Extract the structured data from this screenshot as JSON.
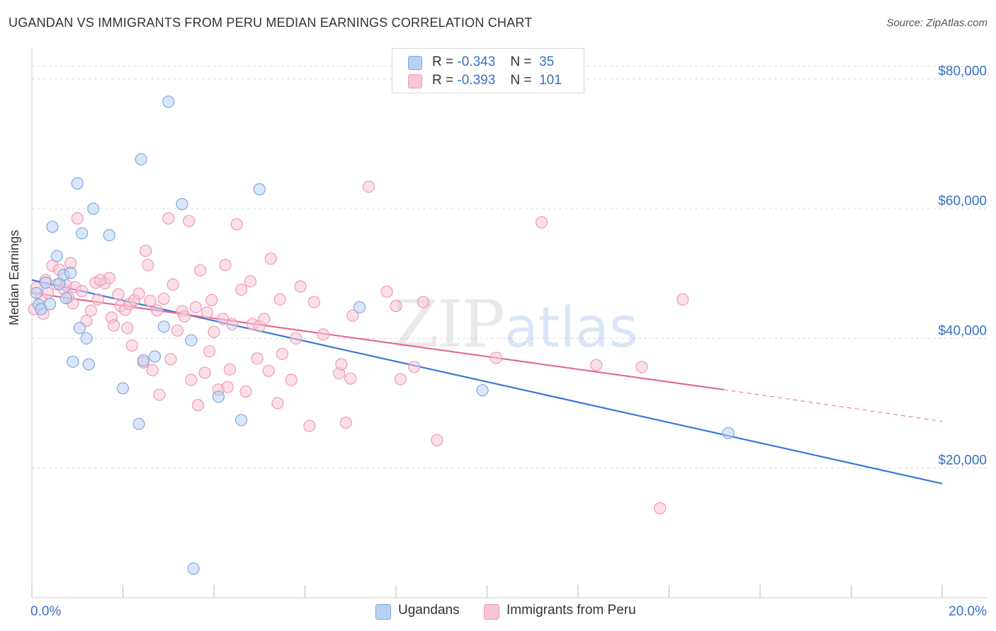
{
  "title": "UGANDAN VS IMMIGRANTS FROM PERU MEDIAN EARNINGS CORRELATION CHART",
  "source": "Source: ZipAtlas.com",
  "watermark": {
    "zip": "ZIP",
    "atlas": "atlas"
  },
  "legend": {
    "ugandans": {
      "r_label": "R =",
      "r_value": "-0.343",
      "n_label": "N =",
      "n_value": "35"
    },
    "peru": {
      "r_label": "R =",
      "r_value": "-0.393",
      "n_label": "N =",
      "n_value": "101"
    }
  },
  "bottom_legend": {
    "ugandans": "Ugandans",
    "peru": "Immigrants from Peru"
  },
  "colors": {
    "blue_fill": "#b8d1f3",
    "blue_stroke": "#7fa8e0",
    "blue_line": "#3a78d6",
    "pink_fill": "#f7c6d6",
    "pink_stroke": "#ee9ab6",
    "pink_line": "#e36b93",
    "axis_text": "#3a6fc4",
    "grid": "#dcdcdc"
  },
  "chart_data": {
    "type": "scatter",
    "ylabel": "Median Earnings",
    "xlim": [
      0,
      20
    ],
    "ylim": [
      0,
      84000
    ],
    "x_tick_labels": [
      "0.0%",
      "20.0%"
    ],
    "y_ticks": [
      {
        "value": 20000,
        "label": "$20,000"
      },
      {
        "value": 40000,
        "label": "$40,000"
      },
      {
        "value": 60000,
        "label": "$60,000"
      },
      {
        "value": 80000,
        "label": "$80,000"
      }
    ],
    "grid": true,
    "series": [
      {
        "name": "Ugandans",
        "points": [
          [
            0.1,
            47000
          ],
          [
            0.15,
            45200
          ],
          [
            0.3,
            48600
          ],
          [
            0.45,
            57200
          ],
          [
            0.55,
            52700
          ],
          [
            0.7,
            49800
          ],
          [
            0.75,
            46200
          ],
          [
            0.85,
            50100
          ],
          [
            0.9,
            36400
          ],
          [
            1.0,
            63900
          ],
          [
            1.05,
            41600
          ],
          [
            1.1,
            56200
          ],
          [
            1.2,
            40000
          ],
          [
            1.25,
            36000
          ],
          [
            1.35,
            60000
          ],
          [
            1.7,
            55900
          ],
          [
            2.0,
            32300
          ],
          [
            2.35,
            26800
          ],
          [
            2.4,
            67600
          ],
          [
            2.45,
            36600
          ],
          [
            2.7,
            37200
          ],
          [
            2.9,
            41800
          ],
          [
            3.0,
            76500
          ],
          [
            3.3,
            60700
          ],
          [
            3.5,
            39700
          ],
          [
            3.55,
            4500
          ],
          [
            4.1,
            31000
          ],
          [
            4.6,
            27400
          ],
          [
            5.0,
            63000
          ],
          [
            7.2,
            44800
          ],
          [
            9.9,
            32000
          ],
          [
            15.3,
            25400
          ],
          [
            0.4,
            45300
          ],
          [
            0.6,
            48400
          ],
          [
            0.2,
            44500
          ]
        ]
      },
      {
        "name": "Immigrants from Peru",
        "points": [
          [
            0.05,
            44500
          ],
          [
            0.1,
            47800
          ],
          [
            0.2,
            46200
          ],
          [
            0.3,
            49000
          ],
          [
            0.35,
            47000
          ],
          [
            0.45,
            51200
          ],
          [
            0.55,
            48300
          ],
          [
            0.6,
            50600
          ],
          [
            0.7,
            47600
          ],
          [
            0.75,
            48200
          ],
          [
            0.8,
            46300
          ],
          [
            0.85,
            51600
          ],
          [
            0.9,
            45400
          ],
          [
            0.95,
            47900
          ],
          [
            1.0,
            58500
          ],
          [
            1.1,
            47300
          ],
          [
            1.2,
            42700
          ],
          [
            1.3,
            44300
          ],
          [
            1.4,
            48600
          ],
          [
            1.45,
            46000
          ],
          [
            1.6,
            48500
          ],
          [
            1.7,
            49300
          ],
          [
            1.75,
            43200
          ],
          [
            1.8,
            42000
          ],
          [
            1.9,
            46800
          ],
          [
            1.95,
            45000
          ],
          [
            2.05,
            44400
          ],
          [
            2.1,
            41600
          ],
          [
            2.15,
            45300
          ],
          [
            2.2,
            38900
          ],
          [
            2.25,
            45900
          ],
          [
            2.35,
            46900
          ],
          [
            2.45,
            36300
          ],
          [
            2.5,
            53500
          ],
          [
            2.55,
            51300
          ],
          [
            2.6,
            45800
          ],
          [
            2.65,
            35100
          ],
          [
            2.75,
            44300
          ],
          [
            2.8,
            31300
          ],
          [
            2.9,
            46100
          ],
          [
            3.0,
            58500
          ],
          [
            3.05,
            36800
          ],
          [
            3.1,
            48300
          ],
          [
            3.2,
            41200
          ],
          [
            3.3,
            44200
          ],
          [
            3.35,
            43400
          ],
          [
            3.45,
            58100
          ],
          [
            3.5,
            33600
          ],
          [
            3.6,
            44800
          ],
          [
            3.65,
            29700
          ],
          [
            3.7,
            50500
          ],
          [
            3.8,
            34700
          ],
          [
            3.85,
            44000
          ],
          [
            3.95,
            45900
          ],
          [
            4.0,
            41000
          ],
          [
            4.1,
            32100
          ],
          [
            4.2,
            43000
          ],
          [
            4.25,
            51300
          ],
          [
            4.35,
            35200
          ],
          [
            4.4,
            42200
          ],
          [
            4.5,
            57600
          ],
          [
            4.6,
            47500
          ],
          [
            4.7,
            31800
          ],
          [
            4.8,
            48800
          ],
          [
            4.85,
            42200
          ],
          [
            4.95,
            36900
          ],
          [
            5.0,
            41900
          ],
          [
            5.1,
            43000
          ],
          [
            5.25,
            52300
          ],
          [
            5.4,
            30000
          ],
          [
            5.45,
            46000
          ],
          [
            5.5,
            37600
          ],
          [
            5.7,
            33600
          ],
          [
            5.8,
            40000
          ],
          [
            5.9,
            48000
          ],
          [
            6.1,
            26500
          ],
          [
            6.2,
            45600
          ],
          [
            6.4,
            40600
          ],
          [
            6.75,
            34600
          ],
          [
            6.8,
            36000
          ],
          [
            6.9,
            27000
          ],
          [
            7.0,
            33800
          ],
          [
            7.05,
            43500
          ],
          [
            7.4,
            63400
          ],
          [
            7.8,
            47200
          ],
          [
            8.0,
            45000
          ],
          [
            8.1,
            33700
          ],
          [
            8.4,
            35600
          ],
          [
            8.6,
            45600
          ],
          [
            8.9,
            24300
          ],
          [
            10.2,
            37000
          ],
          [
            11.2,
            57900
          ],
          [
            12.4,
            35900
          ],
          [
            13.4,
            35600
          ],
          [
            13.8,
            13800
          ],
          [
            14.3,
            46000
          ],
          [
            0.25,
            43800
          ],
          [
            1.5,
            49000
          ],
          [
            3.9,
            38000
          ],
          [
            4.3,
            32500
          ],
          [
            5.2,
            35000
          ]
        ]
      }
    ],
    "trendlines": [
      {
        "series": "Ugandans",
        "x": [
          0,
          20
        ],
        "y": [
          49000,
          17600
        ]
      },
      {
        "series": "Immigrants from Peru",
        "x": [
          0,
          15.2,
          20
        ],
        "y": [
          47000,
          32100,
          27200
        ]
      }
    ]
  }
}
